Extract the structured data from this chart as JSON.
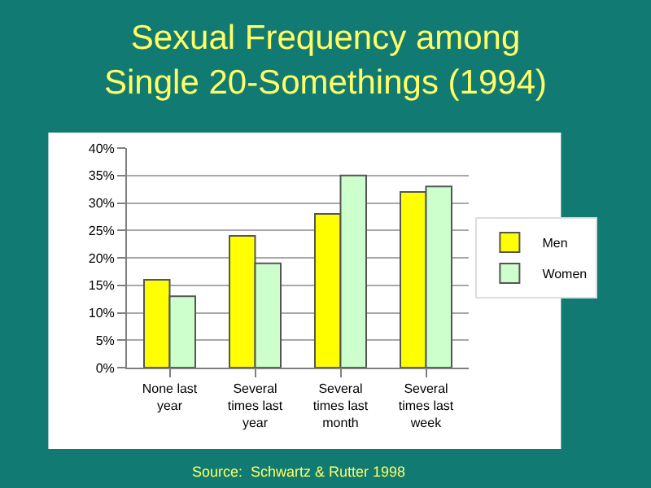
{
  "chart_data": {
    "type": "bar",
    "title": "Sexual Frequency among\nSingle 20-Somethings (1994)",
    "categories": [
      "None last year",
      "Several times last year",
      "Several times last month",
      "Several times last week"
    ],
    "series": [
      {
        "name": "Men",
        "color": "#ffff00",
        "values": [
          16,
          24,
          28,
          32
        ]
      },
      {
        "name": "Women",
        "color": "#ccffcc",
        "values": [
          13,
          19,
          35,
          33
        ]
      }
    ],
    "ylim": [
      0,
      40
    ],
    "yticks": [
      {
        "value": 0,
        "label": "0%"
      },
      {
        "value": 5,
        "label": "5%"
      },
      {
        "value": 10,
        "label": "10%"
      },
      {
        "value": 15,
        "label": "15%"
      },
      {
        "value": 20,
        "label": "20%"
      },
      {
        "value": 25,
        "label": "25%"
      },
      {
        "value": 30,
        "label": "30%"
      },
      {
        "value": 35,
        "label": "35%"
      },
      {
        "value": 40,
        "label": "40%"
      }
    ],
    "grid": "y",
    "legend": "right",
    "annotations": [
      "Source:  Schwartz & Rutter 1998"
    ]
  }
}
